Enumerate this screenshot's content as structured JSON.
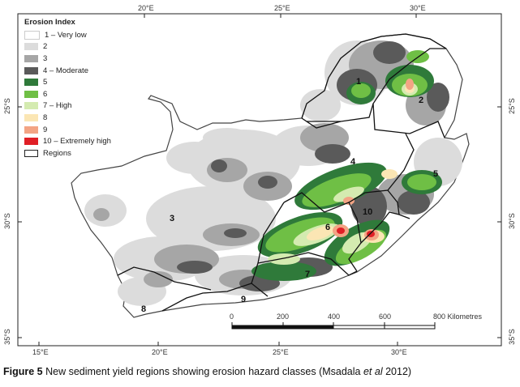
{
  "legend": {
    "title": "Erosion Index",
    "classes": [
      {
        "label": "1 – Very low",
        "color": "#ffffff"
      },
      {
        "label": "2",
        "color": "#dcdcdc"
      },
      {
        "label": "3",
        "color": "#a6a6a6"
      },
      {
        "label": "4 – Moderate",
        "color": "#5a5a5a"
      },
      {
        "label": "5",
        "color": "#2f7a3a"
      },
      {
        "label": "6",
        "color": "#6fbf45"
      },
      {
        "label": "7 – High",
        "color": "#d4ebb0"
      },
      {
        "label": "8",
        "color": "#fbe6b4"
      },
      {
        "label": "9",
        "color": "#f3a484"
      },
      {
        "label": "10 – Extremely high",
        "color": "#e01f26"
      }
    ],
    "regions_label": "Regions"
  },
  "axes": {
    "top": [
      "20°E",
      "25°E",
      "30°E"
    ],
    "bottom": [
      "15°E",
      "20°E",
      "25°E",
      "30°E"
    ],
    "left": [
      "25°S",
      "30°S",
      "35°S"
    ],
    "right": [
      "25°S",
      "30°S",
      "35°S"
    ]
  },
  "regions": [
    "1",
    "2",
    "3",
    "4",
    "5",
    "6",
    "7",
    "8",
    "9",
    "10"
  ],
  "scale_bar": {
    "ticks": [
      "0",
      "200",
      "400",
      "600",
      "800 Kilometres"
    ]
  },
  "caption": {
    "prefix": "Figure 5",
    "text": " New sediment yield regions showing erosion hazard classes (Msadala ",
    "italic": "et al",
    "suffix": " 2012)"
  }
}
